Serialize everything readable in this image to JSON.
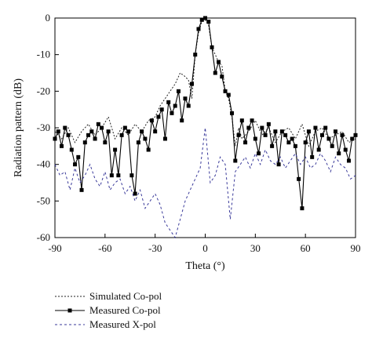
{
  "chart_data": {
    "type": "line",
    "xlabel": "Theta (°)",
    "ylabel": "Radiation pattern (dB)",
    "xlim": [
      -90,
      90
    ],
    "ylim": [
      -60,
      0
    ],
    "xticks": [
      -90,
      -60,
      -30,
      0,
      30,
      60,
      90
    ],
    "yticks": [
      0,
      -10,
      -20,
      -30,
      -40,
      -50,
      -60
    ],
    "xtick_labels": [
      "-90",
      "-60",
      "-30",
      "0",
      "30",
      "60",
      "90"
    ],
    "ytick_labels": [
      "0",
      "-10",
      "-20",
      "-30",
      "-40",
      "-50",
      "-60"
    ],
    "grid": false,
    "legend_position": "bottom-left, below plot",
    "series": [
      {
        "name": "Simulated Co-pol",
        "style": "dotted",
        "color": "#222222",
        "x": [
          -90,
          -86,
          -82,
          -78,
          -74,
          -70,
          -66,
          -62,
          -58,
          -54,
          -50,
          -46,
          -42,
          -38,
          -34,
          -30,
          -27,
          -24,
          -21,
          -18,
          -15,
          -12,
          -10,
          -8,
          -6,
          -4,
          -2,
          0,
          2,
          4,
          6,
          8,
          10,
          12,
          14,
          16,
          18,
          20,
          22,
          26,
          30,
          34,
          38,
          42,
          46,
          50,
          54,
          58,
          62,
          66,
          70,
          74,
          78,
          82,
          86,
          90
        ],
        "y": [
          -31,
          -33,
          -30,
          -34,
          -31,
          -29,
          -32,
          -30,
          -27,
          -33,
          -30,
          -32,
          -29,
          -31,
          -28,
          -27,
          -24,
          -22,
          -20,
          -18,
          -15,
          -16,
          -17,
          -22,
          -10,
          -4,
          -1,
          -0.5,
          -2,
          -8,
          -10,
          -12,
          -13,
          -20,
          -22,
          -27,
          -35,
          -30,
          -33,
          -31,
          -28,
          -32,
          -30,
          -34,
          -31,
          -30,
          -33,
          -29,
          -35,
          -31,
          -30,
          -33,
          -32,
          -31,
          -34,
          -33
        ]
      },
      {
        "name": "Measured Co-pol",
        "style": "solid-square",
        "color": "#000000",
        "x": [
          -90,
          -88,
          -86,
          -84,
          -82,
          -80,
          -78,
          -76,
          -74,
          -72,
          -70,
          -68,
          -66,
          -64,
          -62,
          -60,
          -58,
          -56,
          -54,
          -52,
          -50,
          -48,
          -46,
          -44,
          -42,
          -40,
          -38,
          -36,
          -34,
          -32,
          -30,
          -28,
          -26,
          -24,
          -22,
          -20,
          -18,
          -16,
          -14,
          -12,
          -10,
          -8,
          -6,
          -4,
          -2,
          0,
          2,
          4,
          6,
          8,
          10,
          12,
          14,
          16,
          18,
          20,
          22,
          24,
          26,
          28,
          30,
          32,
          34,
          36,
          38,
          40,
          42,
          44,
          46,
          48,
          50,
          52,
          54,
          56,
          58,
          60,
          62,
          64,
          66,
          68,
          70,
          72,
          74,
          76,
          78,
          80,
          82,
          84,
          86,
          88,
          90
        ],
        "y": [
          -33,
          -31,
          -35,
          -30,
          -32,
          -36,
          -40,
          -38,
          -47,
          -34,
          -32,
          -31,
          -33,
          -29,
          -30,
          -34,
          -31,
          -43,
          -36,
          -43,
          -32,
          -30,
          -31,
          -43,
          -48,
          -34,
          -31,
          -33,
          -36,
          -28,
          -31,
          -27,
          -25,
          -33,
          -23,
          -26,
          -24,
          -20,
          -28,
          -22,
          -24,
          -18,
          -10,
          -3,
          -0.5,
          0,
          -1,
          -8,
          -15,
          -12,
          -16,
          -20,
          -21,
          -26,
          -39,
          -32,
          -28,
          -34,
          -30,
          -28,
          -33,
          -37,
          -30,
          -32,
          -29,
          -35,
          -31,
          -40,
          -31,
          -32,
          -34,
          -33,
          -35,
          -44,
          -52,
          -34,
          -31,
          -38,
          -30,
          -36,
          -32,
          -30,
          -33,
          -35,
          -31,
          -37,
          -32,
          -36,
          -39,
          -33,
          -32
        ]
      },
      {
        "name": "Measured X-pol",
        "style": "dashed",
        "color": "#3a3a9a",
        "x": [
          -90,
          -87,
          -84,
          -81,
          -78,
          -75,
          -72,
          -69,
          -66,
          -63,
          -60,
          -57,
          -54,
          -51,
          -48,
          -45,
          -42,
          -39,
          -36,
          -33,
          -30,
          -27,
          -24,
          -21,
          -18,
          -15,
          -12,
          -9,
          -6,
          -3,
          0,
          3,
          6,
          9,
          12,
          15,
          18,
          21,
          24,
          27,
          30,
          33,
          36,
          39,
          42,
          45,
          48,
          51,
          54,
          57,
          60,
          63,
          66,
          69,
          72,
          75,
          78,
          81,
          84,
          87,
          90
        ],
        "y": [
          -40,
          -43,
          -42,
          -47,
          -41,
          -45,
          -43,
          -40,
          -44,
          -46,
          -42,
          -47,
          -45,
          -44,
          -48,
          -46,
          -50,
          -47,
          -52,
          -50,
          -48,
          -51,
          -56,
          -58,
          -60,
          -55,
          -50,
          -47,
          -44,
          -41,
          -30,
          -45,
          -43,
          -38,
          -40,
          -55,
          -42,
          -40,
          -38,
          -41,
          -37,
          -40,
          -36,
          -39,
          -40,
          -38,
          -41,
          -39,
          -37,
          -40,
          -38,
          -41,
          -40,
          -37,
          -39,
          -42,
          -38,
          -40,
          -41,
          -44,
          -43
        ]
      }
    ]
  }
}
